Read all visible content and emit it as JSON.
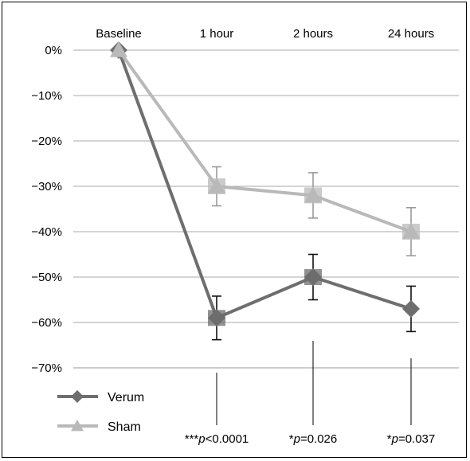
{
  "chart_data": {
    "type": "line",
    "categories": [
      "Baseline",
      "1 hour",
      "2 hours",
      "24 hours"
    ],
    "y_ticks": [
      "0%",
      "−10%",
      "−20%",
      "−30%",
      "−40%",
      "−50%",
      "−60%",
      "−70%"
    ],
    "ylim": [
      -70,
      0
    ],
    "grid": true,
    "legend_position": "bottom-left",
    "series": [
      {
        "name": "Verum",
        "values": [
          0,
          -59,
          -50,
          -57
        ],
        "error": [
          0,
          4.8,
          5,
          5
        ],
        "color": "#6e6e6e",
        "marker": "diamond"
      },
      {
        "name": "Sham",
        "values": [
          0,
          -30,
          -32,
          -40
        ],
        "error": [
          0,
          4.3,
          5,
          5.3
        ],
        "color": "#b9b9b9",
        "marker": "triangle"
      }
    ],
    "annotations": [
      {
        "category": "1 hour",
        "stars": "***",
        "p_label": "p",
        "p_value": "<0.0001"
      },
      {
        "category": "2 hours",
        "stars": "*",
        "p_label": "p",
        "p_value": "=0.026"
      },
      {
        "category": "24 hours",
        "stars": "*",
        "p_label": "p",
        "p_value": "=0.037"
      }
    ]
  }
}
